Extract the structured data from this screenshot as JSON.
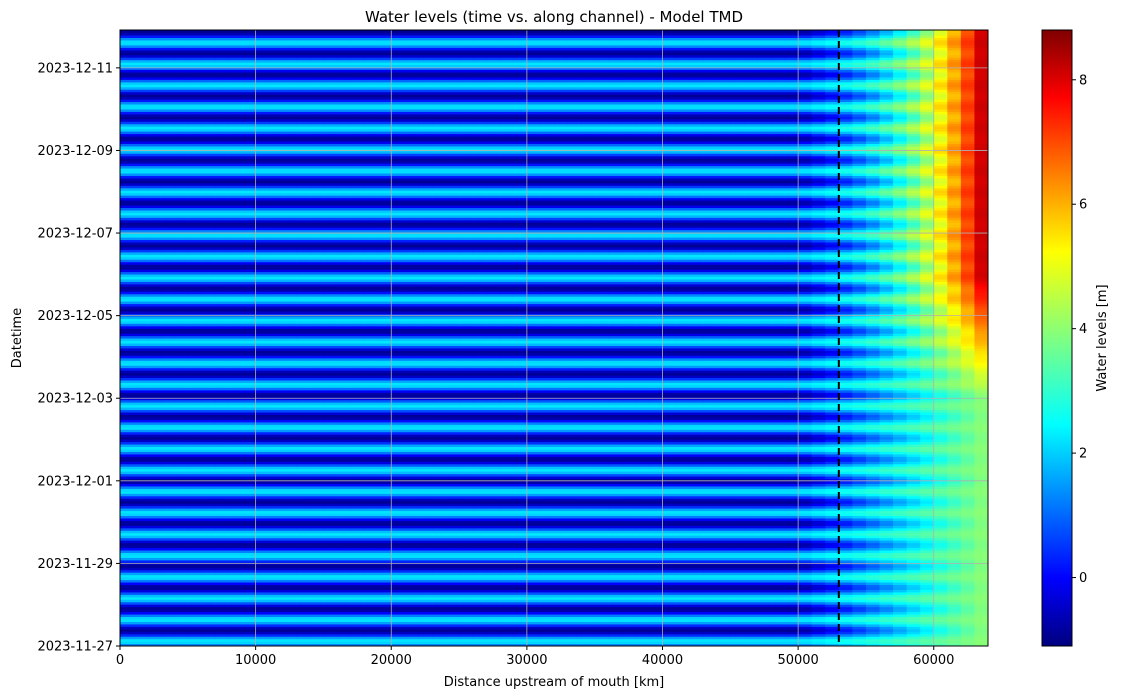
{
  "chart_data": {
    "type": "heatmap",
    "title": "Water levels (time vs. along channel) - Model TMD",
    "xlabel": "Distance upstream of mouth [km]",
    "ylabel": "Datetime",
    "xlim": [
      0,
      64000
    ],
    "ylim": [
      "2023-11-27",
      "2023-12-11T22:00"
    ],
    "x_ticks": [
      0,
      10000,
      20000,
      30000,
      40000,
      50000,
      60000
    ],
    "y_ticks": [
      "2023-11-27",
      "2023-11-29",
      "2023-12-01",
      "2023-12-03",
      "2023-12-05",
      "2023-12-07",
      "2023-12-09",
      "2023-12-11"
    ],
    "grid": true,
    "colorbar": {
      "label": "Water levels [m]",
      "range": [
        -1.1,
        8.8
      ],
      "ticks": [
        0,
        2,
        4,
        6,
        8
      ],
      "colormap": "jet"
    },
    "vertical_line": {
      "x": 53000,
      "style": "dashed",
      "color": "#000000"
    },
    "field_description": {
      "tidal_period_hours": 12.42,
      "downstream_low_m": -0.9,
      "downstream_high_m": 2.4,
      "upstream_base_level_m": 4.0,
      "upstream_surge_peak_m": 8.6,
      "surge_onset": "2023-12-03"
    }
  }
}
